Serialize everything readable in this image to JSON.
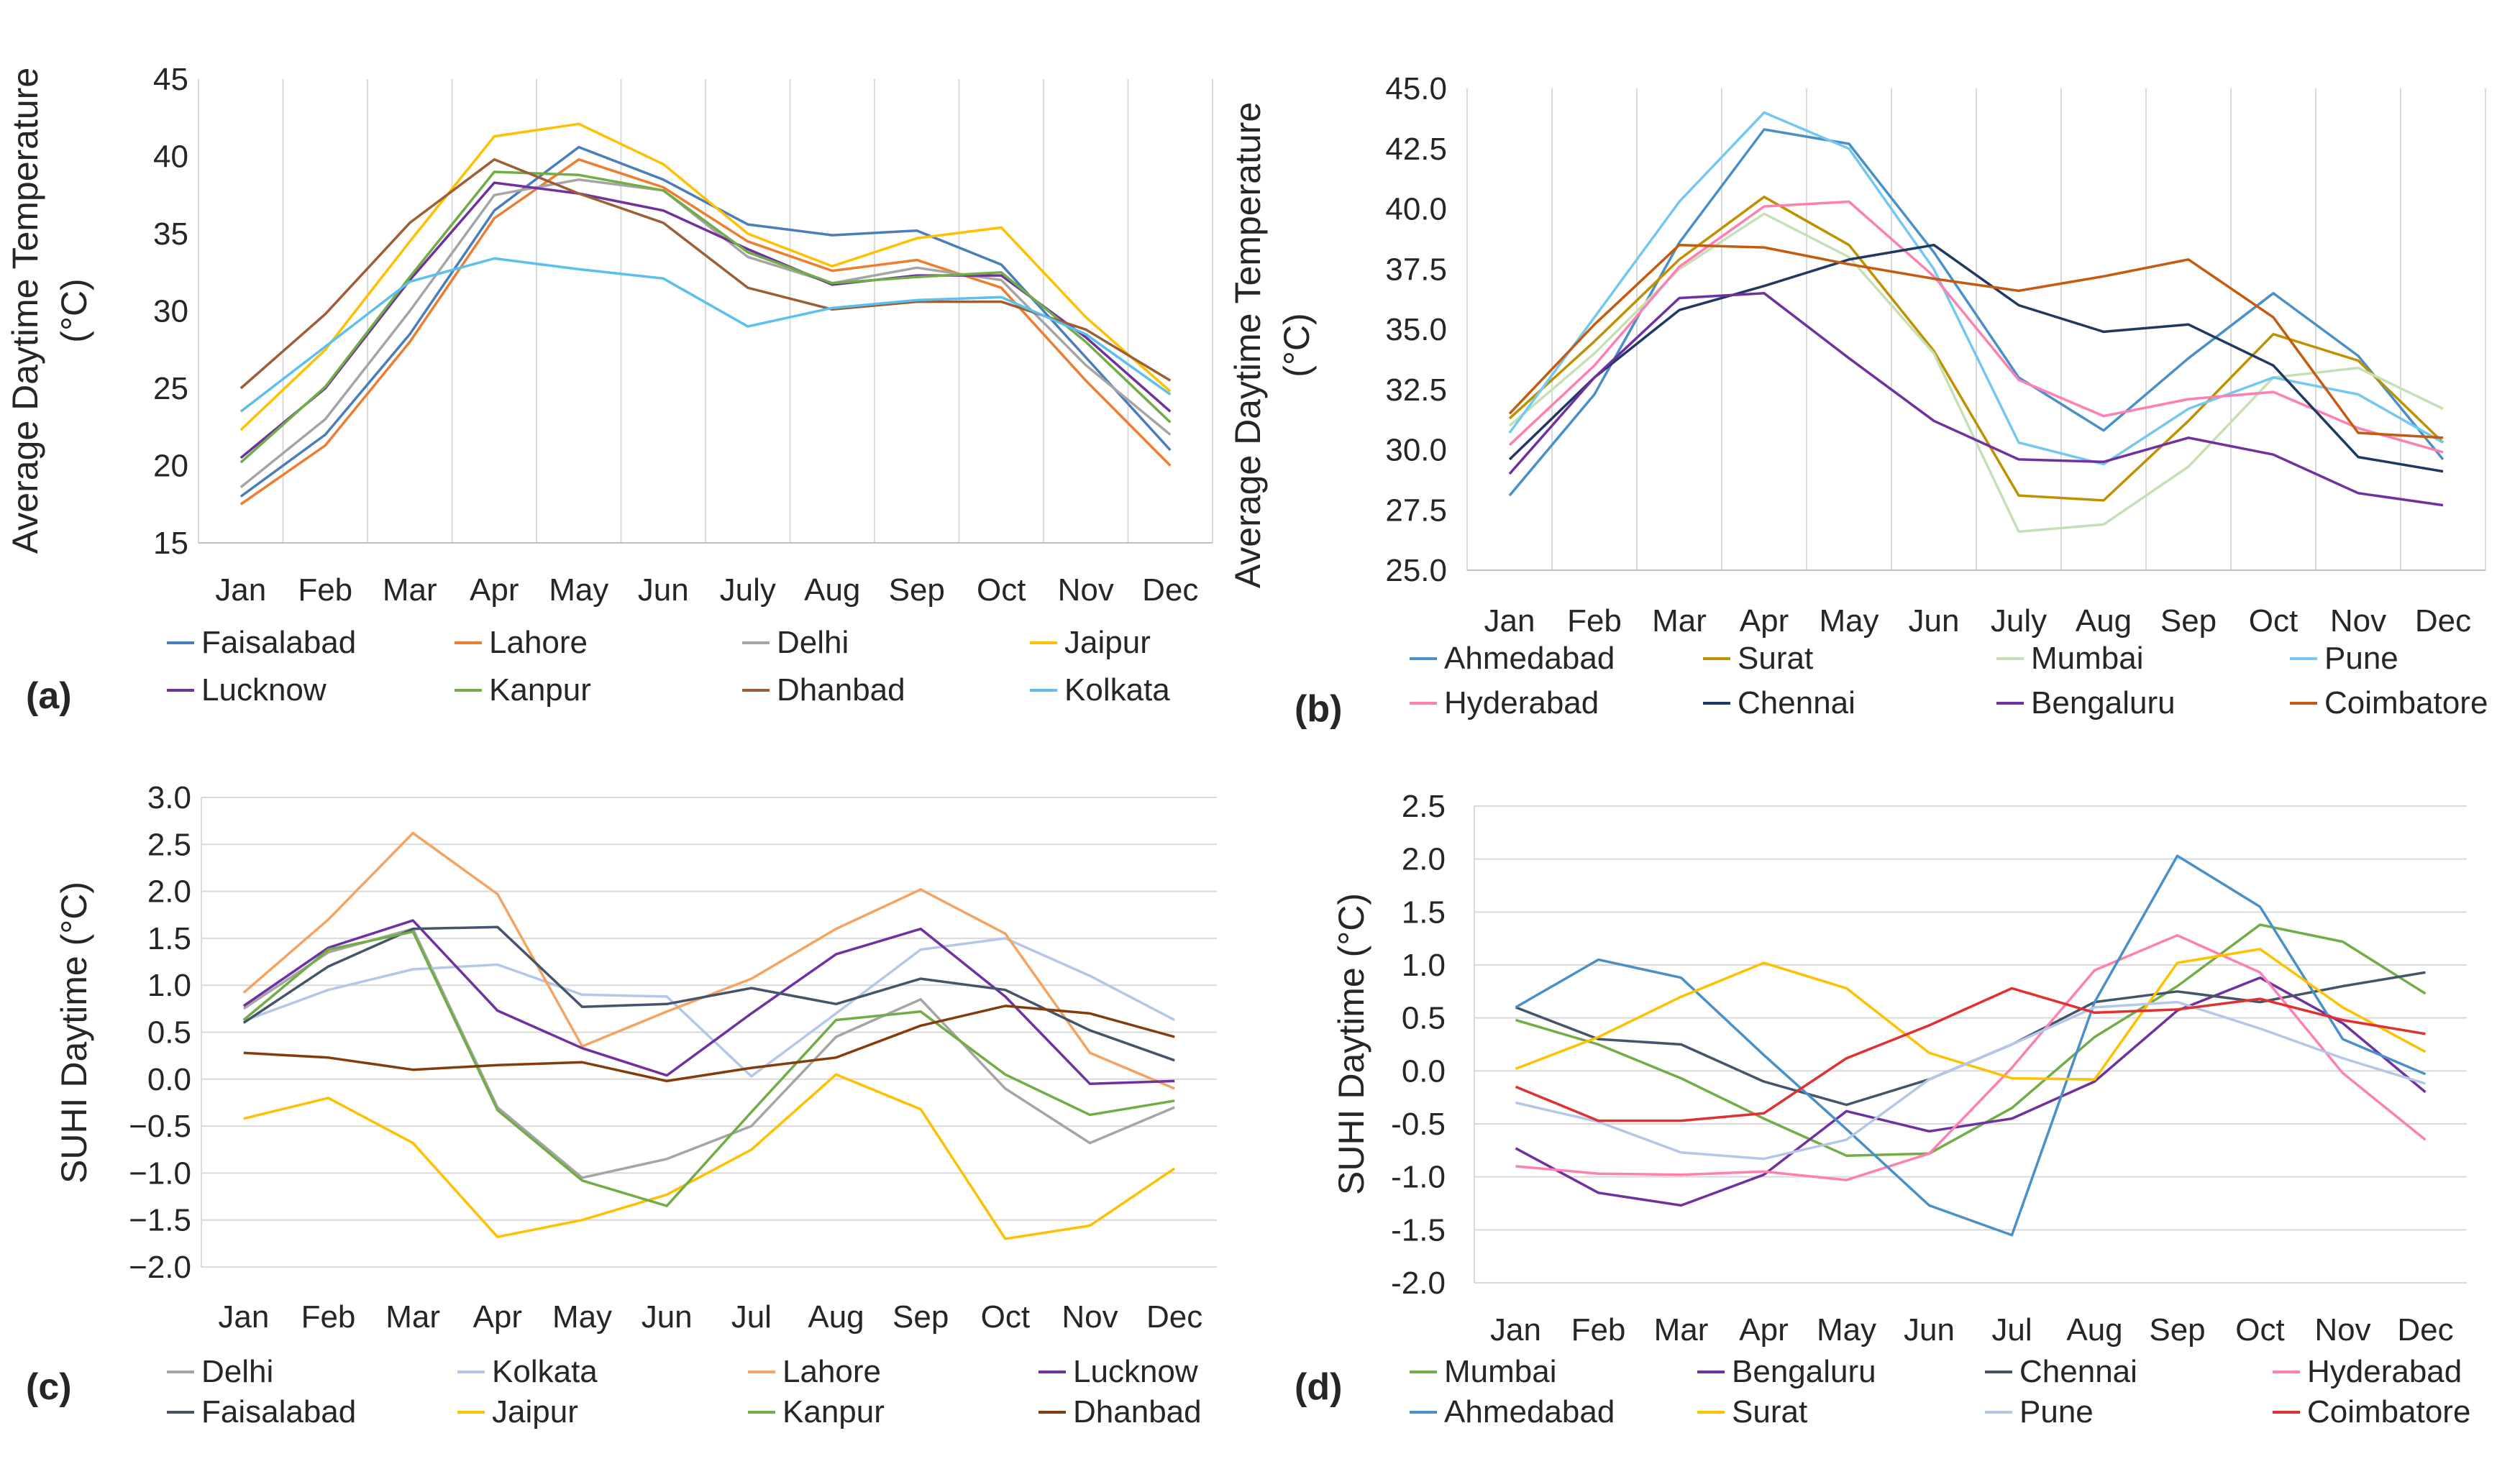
{
  "figure": {
    "panels": [
      "(a)",
      "(b)",
      "(c)",
      "(d)"
    ]
  },
  "chart_data": [
    {
      "id": "a",
      "type": "line",
      "panel_label": "(a)",
      "ylabel": "Average Daytime Temperature (°C)",
      "ylabel_lines": [
        "Average Daytime Temperature",
        "(°C)"
      ],
      "ylim": [
        15,
        45
      ],
      "yticks": [
        15,
        20,
        25,
        30,
        35,
        40,
        45
      ],
      "ytick_labels": [
        "15",
        "20",
        "25",
        "30",
        "35",
        "40",
        "45"
      ],
      "categories": [
        "Jan",
        "Feb",
        "Mar",
        "Apr",
        "May",
        "Jun",
        "July",
        "Aug",
        "Sep",
        "Oct",
        "Nov",
        "Dec"
      ],
      "grid": "vertical",
      "legend_columns": 4,
      "series": [
        {
          "name": "Faisalabad",
          "color": "#4a7ebb",
          "values": [
            18.0,
            22.0,
            28.5,
            36.5,
            40.6,
            38.5,
            35.6,
            34.9,
            35.2,
            33.0,
            27.0,
            21.0
          ]
        },
        {
          "name": "Lahore",
          "color": "#ed7d31",
          "values": [
            17.5,
            21.3,
            28.0,
            36.0,
            39.8,
            38.0,
            34.5,
            32.6,
            33.3,
            31.5,
            25.5,
            20.0
          ]
        },
        {
          "name": "Delhi",
          "color": "#a5a5a5",
          "values": [
            18.6,
            23.0,
            30.0,
            37.5,
            38.5,
            37.8,
            33.5,
            31.8,
            32.8,
            32.0,
            26.5,
            22.0
          ]
        },
        {
          "name": "Jaipur",
          "color": "#ffc000",
          "values": [
            22.3,
            27.5,
            34.5,
            41.3,
            42.1,
            39.5,
            35.0,
            32.9,
            34.7,
            35.4,
            29.6,
            24.8
          ]
        },
        {
          "name": "Lucknow",
          "color": "#7030a0",
          "values": [
            20.5,
            25.0,
            32.0,
            38.3,
            37.6,
            36.5,
            34.0,
            31.7,
            32.3,
            32.3,
            28.3,
            23.5
          ]
        },
        {
          "name": "Kanpur",
          "color": "#70ad47",
          "values": [
            20.2,
            25.1,
            32.2,
            39.0,
            38.8,
            37.8,
            33.8,
            31.8,
            32.2,
            32.5,
            28.0,
            22.8
          ]
        },
        {
          "name": "Dhanbad",
          "color": "#9e5e35",
          "values": [
            25.0,
            29.8,
            35.7,
            39.8,
            37.6,
            35.7,
            31.5,
            30.1,
            30.6,
            30.6,
            28.8,
            25.5
          ]
        },
        {
          "name": "Kolkata",
          "color": "#5bc0eb",
          "values": [
            23.5,
            27.7,
            31.9,
            33.4,
            32.7,
            32.1,
            29.0,
            30.2,
            30.7,
            30.9,
            28.5,
            24.6
          ]
        }
      ]
    },
    {
      "id": "b",
      "type": "line",
      "panel_label": "(b)",
      "ylabel": "Average Daytime Temperature (°C)",
      "ylabel_lines": [
        "Average Daytime Temperature",
        "(°C)"
      ],
      "ylim": [
        25,
        45
      ],
      "yticks": [
        25,
        27.5,
        30,
        32.5,
        35,
        37.5,
        40,
        42.5,
        45
      ],
      "ytick_labels": [
        "25.0",
        "27.5",
        "30.0",
        "32.5",
        "35.0",
        "37.5",
        "40.0",
        "42.5",
        "45.0"
      ],
      "categories": [
        "Jan",
        "Feb",
        "Mar",
        "Apr",
        "May",
        "Jun",
        "July",
        "Aug",
        "Sep",
        "Oct",
        "Nov",
        "Dec"
      ],
      "grid": "vertical",
      "legend_columns": 4,
      "series": [
        {
          "name": "Ahmedabad",
          "color": "#4a90c8",
          "values": [
            28.1,
            32.3,
            38.6,
            43.3,
            42.7,
            38.2,
            33.0,
            30.8,
            33.8,
            36.5,
            33.9,
            29.6
          ]
        },
        {
          "name": "Surat",
          "color": "#bf9000",
          "values": [
            31.3,
            34.5,
            37.9,
            40.5,
            38.5,
            34.1,
            28.1,
            27.9,
            31.2,
            34.8,
            33.7,
            30.3
          ]
        },
        {
          "name": "Mumbai",
          "color": "#c5e0b4",
          "values": [
            31.0,
            34.0,
            37.5,
            39.8,
            38.0,
            34.0,
            26.6,
            26.9,
            29.3,
            33.0,
            33.4,
            31.7
          ]
        },
        {
          "name": "Pune",
          "color": "#74c7f0",
          "values": [
            30.7,
            35.5,
            40.3,
            44.0,
            42.5,
            37.5,
            30.3,
            29.4,
            31.7,
            33.0,
            32.3,
            30.3
          ]
        },
        {
          "name": "Hyderabad",
          "color": "#ff7fb3",
          "values": [
            30.2,
            33.5,
            37.6,
            40.1,
            40.3,
            37.2,
            32.9,
            31.4,
            32.1,
            32.4,
            30.9,
            29.9
          ]
        },
        {
          "name": "Chennai",
          "color": "#203864",
          "values": [
            29.6,
            33.0,
            35.8,
            36.8,
            37.9,
            38.5,
            36.0,
            34.9,
            35.2,
            33.5,
            29.7,
            29.1
          ]
        },
        {
          "name": "Bengaluru",
          "color": "#7030a0",
          "values": [
            29.0,
            33.0,
            36.3,
            36.5,
            33.8,
            31.2,
            29.6,
            29.5,
            30.5,
            29.8,
            28.2,
            27.7
          ]
        },
        {
          "name": "Coimbatore",
          "color": "#c55a11",
          "values": [
            31.5,
            35.2,
            38.5,
            38.4,
            37.7,
            37.1,
            36.6,
            37.2,
            37.9,
            35.5,
            30.7,
            30.5
          ]
        }
      ]
    },
    {
      "id": "c",
      "type": "line",
      "panel_label": "(c)",
      "ylabel": "SUHI Daytime (°C)",
      "ylabel_lines": [
        "SUHI Daytime (°C)"
      ],
      "ylim": [
        -2,
        3
      ],
      "yticks": [
        -2,
        -1.5,
        -1,
        -0.5,
        0,
        0.5,
        1,
        1.5,
        2,
        2.5,
        3
      ],
      "ytick_labels": [
        "−2.0",
        "−1.5",
        "−1.0",
        "−0.5",
        "0.0",
        "0.5",
        "1.0",
        "1.5",
        "2.0",
        "2.5",
        "3.0"
      ],
      "categories": [
        "Jan",
        "Feb",
        "Mar",
        "Apr",
        "May",
        "Jun",
        "Jul",
        "Aug",
        "Sep",
        "Oct",
        "Nov",
        "Dec"
      ],
      "grid": "horizontal",
      "legend_columns": 4,
      "series": [
        {
          "name": "Delhi",
          "color": "#a5a5a5",
          "values": [
            0.75,
            1.35,
            1.6,
            -0.3,
            -1.05,
            -0.85,
            -0.5,
            0.45,
            0.85,
            -0.1,
            -0.68,
            -0.3
          ]
        },
        {
          "name": "Kolkata",
          "color": "#b4c7e7",
          "values": [
            0.62,
            0.95,
            1.17,
            1.22,
            0.9,
            0.88,
            0.03,
            0.7,
            1.38,
            1.5,
            1.1,
            0.63
          ]
        },
        {
          "name": "Lahore",
          "color": "#f4a460",
          "values": [
            0.92,
            1.7,
            2.62,
            1.97,
            0.35,
            0.72,
            1.07,
            1.6,
            2.02,
            1.55,
            0.28,
            -0.1
          ]
        },
        {
          "name": "Lucknow",
          "color": "#7030a0",
          "values": [
            0.78,
            1.4,
            1.69,
            0.73,
            0.33,
            0.04,
            0.7,
            1.33,
            1.6,
            0.88,
            -0.05,
            -0.02
          ]
        },
        {
          "name": "Faisalabad",
          "color": "#44546a",
          "values": [
            0.6,
            1.2,
            1.6,
            1.62,
            0.77,
            0.8,
            0.97,
            0.8,
            1.07,
            0.95,
            0.52,
            0.2
          ]
        },
        {
          "name": "Jaipur",
          "color": "#ffc000",
          "values": [
            -0.42,
            -0.2,
            -0.68,
            -1.68,
            -1.5,
            -1.23,
            -0.75,
            0.05,
            -0.32,
            -1.7,
            -1.56,
            -0.95
          ]
        },
        {
          "name": "Kanpur",
          "color": "#70ad47",
          "values": [
            0.63,
            1.38,
            1.57,
            -0.33,
            -1.08,
            -1.35,
            -0.35,
            0.63,
            0.72,
            0.05,
            -0.38,
            -0.23
          ]
        },
        {
          "name": "Dhanbad",
          "color": "#843c0c",
          "values": [
            0.28,
            0.23,
            0.1,
            0.15,
            0.18,
            -0.02,
            0.12,
            0.23,
            0.57,
            0.78,
            0.7,
            0.45
          ]
        }
      ]
    },
    {
      "id": "d",
      "type": "line",
      "panel_label": "(d)",
      "ylabel": "SUHI Daytime (°C)",
      "ylabel_lines": [
        "SUHI Daytime (°C)"
      ],
      "ylim": [
        -2,
        2.5
      ],
      "yticks": [
        -2,
        -1.5,
        -1,
        -0.5,
        0,
        0.5,
        1,
        1.5,
        2,
        2.5
      ],
      "ytick_labels": [
        "-2.0",
        "-1.5",
        "-1.0",
        "-0.5",
        "0.0",
        "0.5",
        "1.0",
        "1.5",
        "2.0",
        "2.5"
      ],
      "categories": [
        "Jan",
        "Feb",
        "Mar",
        "Apr",
        "May",
        "Jun",
        "Jul",
        "Aug",
        "Sep",
        "Oct",
        "Nov",
        "Dec"
      ],
      "grid": "horizontal",
      "legend_columns": 4,
      "series": [
        {
          "name": "Mumbai",
          "color": "#70ad47",
          "values": [
            0.48,
            0.25,
            -0.07,
            -0.45,
            -0.8,
            -0.78,
            -0.35,
            0.32,
            0.8,
            1.38,
            1.22,
            0.73
          ]
        },
        {
          "name": "Bengaluru",
          "color": "#7030a0",
          "values": [
            -0.73,
            -1.15,
            -1.27,
            -0.98,
            -0.38,
            -0.57,
            -0.45,
            -0.1,
            0.57,
            0.88,
            0.45,
            -0.2
          ]
        },
        {
          "name": "Chennai",
          "color": "#44546a",
          "values": [
            0.6,
            0.3,
            0.25,
            -0.1,
            -0.32,
            -0.08,
            0.25,
            0.65,
            0.75,
            0.65,
            0.8,
            0.93
          ]
        },
        {
          "name": "Hyderabad",
          "color": "#ff7fb3",
          "values": [
            -0.9,
            -0.97,
            -0.98,
            -0.95,
            -1.03,
            -0.78,
            0.03,
            0.95,
            1.28,
            0.93,
            -0.02,
            -0.65
          ]
        },
        {
          "name": "Ahmedabad",
          "color": "#4a90c8",
          "values": [
            0.6,
            1.05,
            0.88,
            0.15,
            -0.55,
            -1.27,
            -1.55,
            0.65,
            2.03,
            1.55,
            0.3,
            -0.03
          ]
        },
        {
          "name": "Surat",
          "color": "#ffc000",
          "values": [
            0.02,
            0.32,
            0.7,
            1.02,
            0.78,
            0.17,
            -0.07,
            -0.08,
            1.02,
            1.15,
            0.6,
            0.18
          ]
        },
        {
          "name": "Pune",
          "color": "#b4c7e7",
          "values": [
            -0.3,
            -0.48,
            -0.77,
            -0.83,
            -0.65,
            -0.08,
            0.25,
            0.6,
            0.65,
            0.4,
            0.12,
            -0.12
          ]
        },
        {
          "name": "Coimbatore",
          "color": "#e03030",
          "values": [
            -0.15,
            -0.47,
            -0.47,
            -0.4,
            0.12,
            0.43,
            0.78,
            0.55,
            0.58,
            0.68,
            0.48,
            0.35
          ]
        }
      ]
    }
  ]
}
